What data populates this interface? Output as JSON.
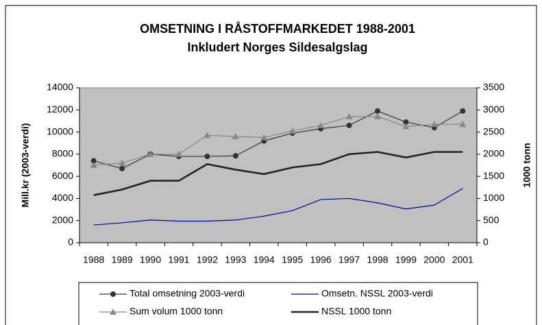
{
  "chart_data": {
    "type": "line",
    "title": "OMSETNING I RÅSTOFFMARKEDET 1988-2001",
    "subtitle": "Inkludert Norges Sildesalgslag",
    "y_label": "Mill.kr (2003-verdi)",
    "y2_label": "1000 tonn",
    "categories": [
      "1988",
      "1989",
      "1990",
      "1991",
      "1992",
      "1993",
      "1994",
      "1995",
      "1996",
      "1997",
      "1998",
      "1999",
      "2000",
      "2001"
    ],
    "ylim": [
      0,
      14000
    ],
    "yticks": [
      0,
      2000,
      4000,
      6000,
      8000,
      10000,
      12000,
      14000
    ],
    "y2lim": [
      0,
      3500
    ],
    "y2ticks": [
      0,
      500,
      1000,
      1500,
      2000,
      2500,
      3000,
      3500
    ],
    "series": [
      {
        "name": "Total omsetning 2003-verdi",
        "color": "#333333",
        "marker": "circle",
        "values": [
          7400,
          6700,
          8000,
          7800,
          7800,
          7850,
          9200,
          9900,
          10300,
          10600,
          11900,
          10900,
          10400,
          11900
        ]
      },
      {
        "name": "Omsetn. NSSL 2003-verdi",
        "color": "#000099",
        "marker": "none",
        "values": [
          1600,
          1800,
          2050,
          1950,
          1950,
          2050,
          2400,
          2900,
          3900,
          4000,
          3600,
          3050,
          3400,
          4900
        ]
      },
      {
        "name": "Sum volum 1000 tonn",
        "color": "#888888",
        "marker": "triangle",
        "axis": "y2",
        "values": [
          1750,
          1800,
          2000,
          2000,
          2425,
          2400,
          2375,
          2525,
          2650,
          2850,
          2850,
          2625,
          2675,
          2675
        ]
      },
      {
        "name": "NSSL 1000 tonn",
        "color": "#222222",
        "marker": "none",
        "axis": "y2",
        "values": [
          1075,
          1200,
          1400,
          1400,
          1775,
          1650,
          1550,
          1700,
          1775,
          2000,
          2050,
          1925,
          2050,
          2050
        ]
      }
    ]
  }
}
